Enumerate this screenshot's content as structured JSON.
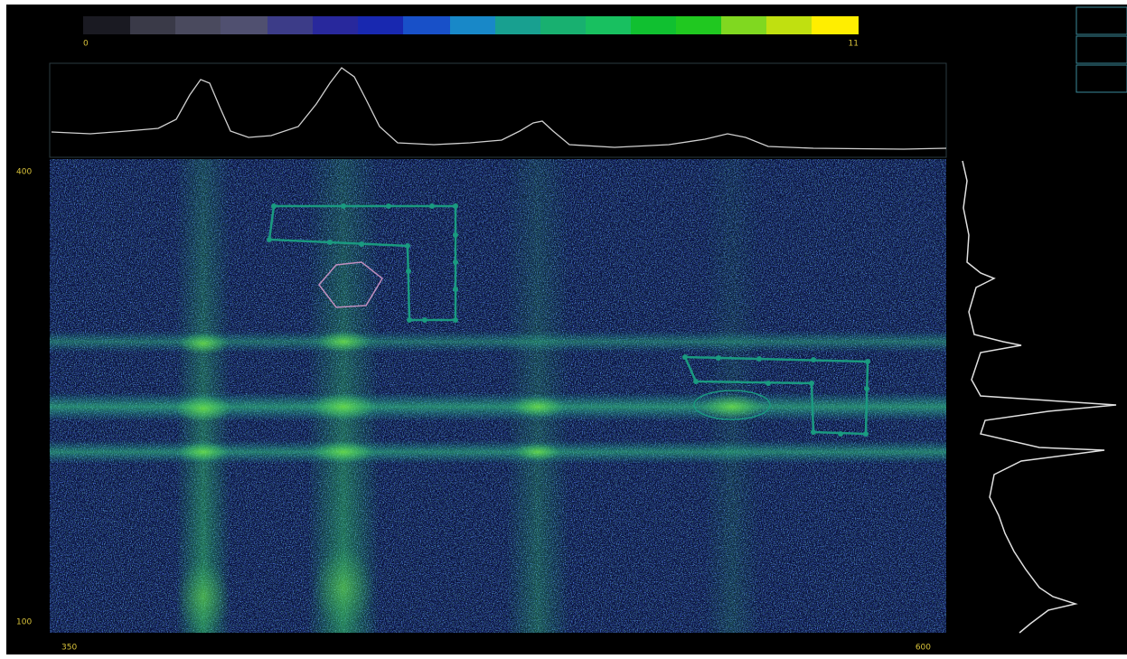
{
  "colorbar": {
    "min_label": "0",
    "max_label": "11"
  },
  "image": {
    "y_top_label": "400",
    "y_bottom_label": "100",
    "x_left_label": "350",
    "x_right_label": "600"
  }
}
